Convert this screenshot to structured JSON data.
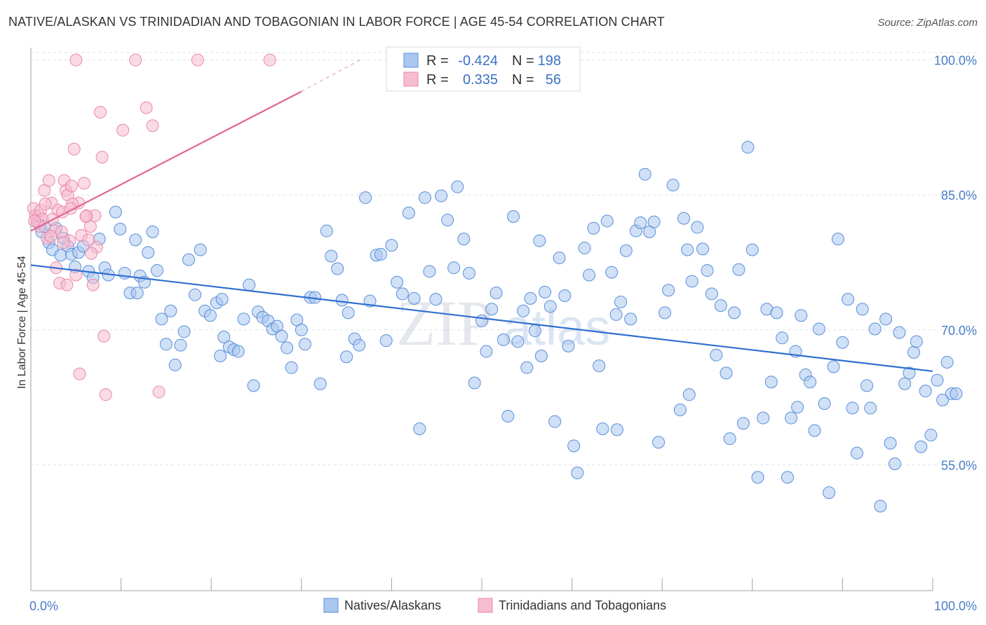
{
  "header": {
    "title": "NATIVE/ALASKAN VS TRINIDADIAN AND TOBAGONIAN IN LABOR FORCE | AGE 45-54 CORRELATION CHART",
    "source": "Source: ZipAtlas.com"
  },
  "watermark": {
    "zip": "ZIP",
    "atlas": "atlas"
  },
  "colors": {
    "blue_fill": "#a9c7f0",
    "blue_stroke": "#5a8fd8",
    "blue_line": "#2f6fd0",
    "pink_fill": "#f6bcd0",
    "pink_stroke": "#e98aaa",
    "pink_line": "#e26690",
    "tick_text": "#4a7cc9",
    "grid": "#dde2ea"
  },
  "chart_data": {
    "type": "scatter",
    "title": "NATIVE/ALASKAN VS TRINIDADIAN AND TOBAGONIAN IN LABOR FORCE | AGE 45-54 CORRELATION CHART",
    "xlabel": "",
    "ylabel": "In Labor Force | Age 45-54",
    "xlim": [
      0,
      100
    ],
    "ylim": [
      41,
      102
    ],
    "x_tick_labels": [
      "0.0%",
      "100.0%"
    ],
    "y_ticks": [
      55,
      70,
      85,
      100
    ],
    "y_tick_labels": [
      "55.0%",
      "70.0%",
      "85.0%",
      "100.0%"
    ],
    "grid": true,
    "legend": {
      "position": "top-center",
      "rows": [
        {
          "r_label": "R =",
          "r_value": "-0.424",
          "n_label": "N =",
          "n_value": "198"
        },
        {
          "r_label": "R =",
          "r_value": "0.335",
          "n_label": "N =",
          "n_value": "56"
        }
      ]
    },
    "bottom_legend": [
      "Natives/Alaskans",
      "Trinidadians and Tobagonians"
    ],
    "series": [
      {
        "name": "Natives/Alaskans",
        "trend": {
          "x0": 0,
          "y0": 77.2,
          "x1": 100,
          "y1": 65.4
        },
        "points": [
          [
            0.8,
            81.9
          ],
          [
            1.2,
            80.9
          ],
          [
            1.5,
            81.5
          ],
          [
            2.0,
            79.7
          ],
          [
            2.4,
            78.9
          ],
          [
            2.8,
            81.3
          ],
          [
            3.3,
            78.3
          ],
          [
            3.6,
            80.2
          ],
          [
            4.1,
            79.3
          ],
          [
            4.5,
            78.4
          ],
          [
            4.9,
            77.0
          ],
          [
            5.3,
            78.6
          ],
          [
            5.8,
            79.3
          ],
          [
            6.4,
            76.5
          ],
          [
            6.9,
            75.8
          ],
          [
            7.6,
            80.1
          ],
          [
            8.2,
            76.9
          ],
          [
            8.6,
            76.1
          ],
          [
            9.4,
            83.1
          ],
          [
            9.9,
            81.2
          ],
          [
            10.4,
            76.3
          ],
          [
            11.0,
            74.1
          ],
          [
            11.6,
            80.0
          ],
          [
            12.1,
            76.0
          ],
          [
            12.6,
            75.3
          ],
          [
            13.0,
            78.6
          ],
          [
            13.5,
            80.9
          ],
          [
            14.0,
            76.6
          ],
          [
            14.5,
            71.2
          ],
          [
            15.0,
            68.4
          ],
          [
            15.5,
            72.1
          ],
          [
            16.0,
            66.1
          ],
          [
            16.6,
            68.3
          ],
          [
            17.0,
            69.8
          ],
          [
            17.5,
            77.8
          ],
          [
            18.2,
            73.9
          ],
          [
            18.8,
            78.9
          ],
          [
            19.3,
            72.1
          ],
          [
            19.9,
            71.6
          ],
          [
            20.6,
            73.0
          ],
          [
            21.0,
            67.1
          ],
          [
            21.4,
            69.2
          ],
          [
            22.0,
            68.1
          ],
          [
            22.5,
            67.8
          ],
          [
            23.0,
            67.6
          ],
          [
            23.6,
            71.2
          ],
          [
            24.2,
            75.0
          ],
          [
            24.7,
            63.8
          ],
          [
            25.2,
            72.0
          ],
          [
            25.7,
            71.4
          ],
          [
            26.3,
            71.0
          ],
          [
            26.8,
            70.1
          ],
          [
            27.3,
            70.4
          ],
          [
            27.8,
            69.3
          ],
          [
            28.4,
            68.0
          ],
          [
            28.9,
            65.8
          ],
          [
            29.5,
            71.1
          ],
          [
            30.0,
            70.0
          ],
          [
            30.4,
            68.4
          ],
          [
            31.0,
            73.6
          ],
          [
            31.5,
            73.6
          ],
          [
            32.1,
            64.0
          ],
          [
            32.8,
            81.0
          ],
          [
            33.3,
            78.2
          ],
          [
            34.0,
            76.8
          ],
          [
            34.5,
            73.3
          ],
          [
            35.2,
            71.9
          ],
          [
            35.9,
            69.0
          ],
          [
            36.4,
            68.3
          ],
          [
            37.1,
            84.7
          ],
          [
            37.6,
            73.2
          ],
          [
            38.3,
            78.3
          ],
          [
            38.8,
            78.4
          ],
          [
            39.4,
            68.8
          ],
          [
            40.0,
            79.4
          ],
          [
            40.6,
            75.3
          ],
          [
            41.2,
            74.0
          ],
          [
            41.9,
            83.0
          ],
          [
            42.5,
            73.5
          ],
          [
            43.1,
            59.0
          ],
          [
            43.7,
            84.7
          ],
          [
            44.2,
            76.5
          ],
          [
            44.9,
            73.4
          ],
          [
            45.5,
            84.9
          ],
          [
            46.2,
            82.2
          ],
          [
            46.9,
            76.9
          ],
          [
            47.3,
            85.9
          ],
          [
            48.0,
            80.1
          ],
          [
            48.6,
            76.3
          ],
          [
            49.2,
            64.1
          ],
          [
            50.0,
            71.0
          ],
          [
            50.5,
            67.6
          ],
          [
            51.1,
            72.3
          ],
          [
            51.6,
            74.1
          ],
          [
            52.4,
            68.9
          ],
          [
            52.9,
            60.4
          ],
          [
            53.5,
            82.6
          ],
          [
            54.0,
            68.7
          ],
          [
            54.6,
            72.1
          ],
          [
            55.0,
            65.8
          ],
          [
            55.4,
            73.5
          ],
          [
            55.9,
            69.9
          ],
          [
            56.4,
            79.9
          ],
          [
            57.0,
            74.2
          ],
          [
            57.6,
            72.6
          ],
          [
            58.1,
            59.8
          ],
          [
            58.6,
            78.0
          ],
          [
            59.2,
            73.8
          ],
          [
            59.6,
            68.2
          ],
          [
            60.2,
            57.1
          ],
          [
            60.6,
            54.1
          ],
          [
            61.4,
            79.1
          ],
          [
            61.9,
            76.1
          ],
          [
            62.4,
            81.3
          ],
          [
            63.0,
            66.0
          ],
          [
            63.4,
            59.0
          ],
          [
            63.9,
            82.1
          ],
          [
            64.4,
            76.4
          ],
          [
            64.9,
            71.7
          ],
          [
            65.4,
            73.1
          ],
          [
            66.0,
            78.8
          ],
          [
            66.5,
            71.2
          ],
          [
            67.1,
            81.0
          ],
          [
            67.6,
            81.9
          ],
          [
            68.1,
            87.3
          ],
          [
            68.6,
            80.9
          ],
          [
            69.1,
            82.0
          ],
          [
            69.6,
            57.5
          ],
          [
            70.3,
            71.9
          ],
          [
            70.7,
            74.4
          ],
          [
            71.2,
            86.1
          ],
          [
            72.0,
            61.1
          ],
          [
            72.4,
            82.4
          ],
          [
            72.8,
            78.9
          ],
          [
            73.3,
            75.4
          ],
          [
            73.9,
            81.4
          ],
          [
            74.5,
            79.0
          ],
          [
            75.0,
            76.6
          ],
          [
            75.5,
            74.0
          ],
          [
            76.0,
            67.2
          ],
          [
            76.5,
            72.7
          ],
          [
            77.1,
            65.2
          ],
          [
            77.5,
            57.9
          ],
          [
            78.0,
            71.9
          ],
          [
            78.5,
            76.7
          ],
          [
            79.0,
            59.6
          ],
          [
            79.5,
            90.3
          ],
          [
            80.0,
            78.9
          ],
          [
            80.6,
            53.6
          ],
          [
            81.2,
            60.2
          ],
          [
            81.6,
            72.3
          ],
          [
            82.1,
            64.2
          ],
          [
            82.7,
            71.9
          ],
          [
            83.3,
            69.1
          ],
          [
            83.9,
            53.6
          ],
          [
            84.3,
            60.2
          ],
          [
            84.8,
            67.6
          ],
          [
            85.4,
            71.6
          ],
          [
            85.9,
            65.0
          ],
          [
            86.4,
            64.2
          ],
          [
            86.9,
            58.8
          ],
          [
            87.4,
            70.1
          ],
          [
            88.0,
            61.8
          ],
          [
            88.5,
            51.9
          ],
          [
            89.0,
            65.9
          ],
          [
            89.5,
            80.1
          ],
          [
            90.0,
            68.6
          ],
          [
            90.6,
            73.4
          ],
          [
            91.1,
            61.3
          ],
          [
            91.6,
            56.3
          ],
          [
            92.2,
            72.3
          ],
          [
            92.7,
            63.8
          ],
          [
            93.1,
            61.3
          ],
          [
            93.6,
            70.1
          ],
          [
            94.2,
            50.4
          ],
          [
            94.8,
            71.2
          ],
          [
            95.3,
            57.4
          ],
          [
            95.8,
            55.1
          ],
          [
            96.3,
            69.7
          ],
          [
            96.9,
            64.0
          ],
          [
            97.4,
            65.2
          ],
          [
            97.9,
            67.5
          ],
          [
            98.2,
            68.7
          ],
          [
            98.7,
            57.0
          ],
          [
            99.2,
            63.2
          ],
          [
            99.8,
            58.3
          ],
          [
            100.5,
            64.4
          ],
          [
            101.1,
            62.2
          ],
          [
            101.6,
            66.4
          ],
          [
            102.1,
            62.9
          ],
          [
            102.6,
            62.9
          ],
          [
            11.8,
            74.1
          ],
          [
            21.2,
            73.4
          ],
          [
            35.0,
            67.0
          ],
          [
            56.6,
            67.1
          ],
          [
            65.0,
            58.9
          ],
          [
            73.0,
            62.8
          ],
          [
            85.0,
            61.4
          ]
        ]
      },
      {
        "name": "Trinidadians and Tobagonians",
        "trend": {
          "x0": 0,
          "y0": 81.0,
          "x1": 30.0,
          "y1": 96.5,
          "dash_to_x": 36.5,
          "dash_to_y": 100.0
        },
        "points": [
          [
            0.3,
            83.5
          ],
          [
            0.5,
            82.7
          ],
          [
            0.7,
            82.0
          ],
          [
            0.9,
            82.7
          ],
          [
            1.1,
            83.3
          ],
          [
            1.3,
            82.3
          ],
          [
            1.5,
            85.5
          ],
          [
            1.8,
            80.2
          ],
          [
            2.0,
            86.6
          ],
          [
            2.3,
            84.1
          ],
          [
            2.6,
            81.0
          ],
          [
            2.8,
            76.9
          ],
          [
            3.0,
            83.3
          ],
          [
            3.2,
            75.2
          ],
          [
            3.5,
            83.1
          ],
          [
            3.7,
            86.6
          ],
          [
            3.9,
            85.5
          ],
          [
            4.1,
            85.0
          ],
          [
            4.3,
            79.9
          ],
          [
            4.5,
            86.0
          ],
          [
            4.8,
            90.1
          ],
          [
            5.0,
            76.1
          ],
          [
            5.3,
            84.1
          ],
          [
            5.6,
            80.5
          ],
          [
            5.9,
            86.3
          ],
          [
            6.2,
            82.7
          ],
          [
            6.4,
            80.0
          ],
          [
            6.6,
            81.5
          ],
          [
            6.9,
            75.0
          ],
          [
            7.1,
            82.7
          ],
          [
            7.3,
            79.2
          ],
          [
            7.7,
            94.2
          ],
          [
            7.9,
            89.2
          ],
          [
            8.1,
            69.3
          ],
          [
            8.3,
            62.8
          ],
          [
            5.0,
            100.0
          ],
          [
            10.2,
            92.2
          ],
          [
            11.6,
            100.0
          ],
          [
            12.8,
            94.7
          ],
          [
            13.5,
            92.7
          ],
          [
            14.2,
            63.1
          ],
          [
            18.5,
            100.0
          ],
          [
            26.5,
            100.0
          ],
          [
            2.4,
            82.3
          ],
          [
            3.4,
            80.9
          ],
          [
            4.6,
            84.0
          ],
          [
            5.4,
            65.1
          ],
          [
            6.1,
            82.6
          ],
          [
            1.0,
            81.5
          ],
          [
            1.6,
            84.0
          ],
          [
            2.2,
            80.4
          ],
          [
            4.0,
            75.0
          ],
          [
            6.7,
            78.5
          ],
          [
            0.4,
            82.1
          ],
          [
            3.6,
            79.7
          ],
          [
            4.4,
            83.5
          ]
        ]
      }
    ]
  }
}
